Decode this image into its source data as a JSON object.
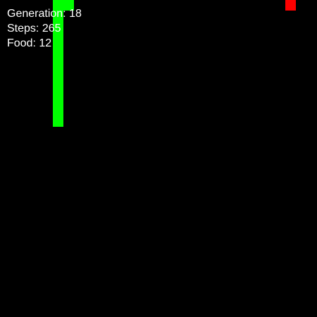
{
  "hud": {
    "generation_label": "Generation",
    "generation_value": "18",
    "steps_label": "Steps",
    "steps_value": "265",
    "food_label": "Food",
    "food_value": "12"
  },
  "colors": {
    "background": "#000000",
    "snake": "#00ff00",
    "food": "#ff0000",
    "text": "#ffffff"
  }
}
